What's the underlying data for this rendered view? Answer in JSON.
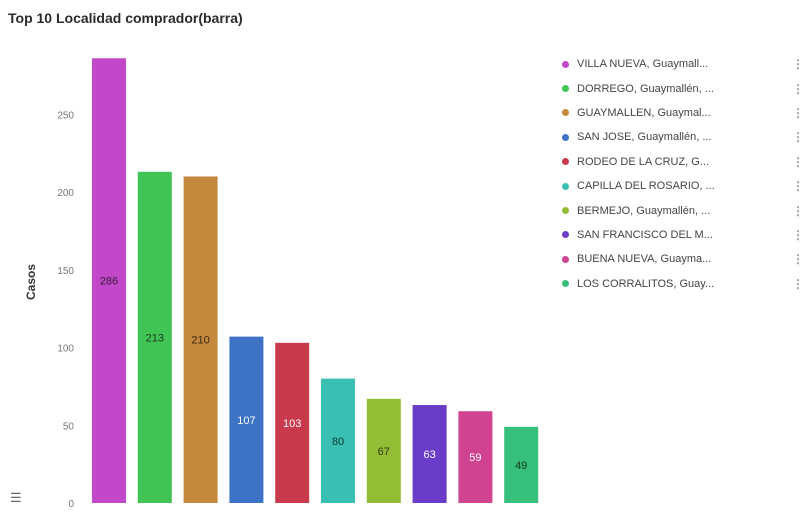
{
  "title": "Top 10 Localidad comprador(barra)",
  "chart_data": {
    "type": "bar",
    "ylabel": "Casos",
    "ylim": [
      0,
      300
    ],
    "yticks": [
      0,
      50,
      100,
      150,
      200,
      250
    ],
    "grid": false,
    "legend_position": "right",
    "categories": [
      "VILLA NUEVA, Guaymall...",
      "DORREGO, Guaymallén, ...",
      "GUAYMALLEN, Guaymal...",
      "SAN JOSE, Guaymallén, ...",
      "RODEO DE LA CRUZ, G...",
      "CAPILLA DEL ROSARIO, ...",
      "BERMEJO, Guaymallén, ...",
      "SAN FRANCISCO DEL M...",
      "BUENA NUEVA, Guayma...",
      "LOS CORRALITOS, Guay..."
    ],
    "values": [
      286,
      213,
      210,
      107,
      103,
      80,
      67,
      63,
      59,
      49
    ],
    "colors": [
      "#c148c8",
      "#3fc455",
      "#c5893d",
      "#3e72c4",
      "#c83a4c",
      "#39c0b2",
      "#92bd35",
      "#6a3dc8",
      "#cf4390",
      "#37bf7c"
    ],
    "label_colors": [
      "#3a1a3c",
      "#1c3a1f",
      "#3a2a12",
      "#ffffff",
      "#ffffff",
      "#103a35",
      "#2b3a10",
      "#ffffff",
      "#ffffff",
      "#103a22"
    ]
  },
  "icons": {
    "legend_menu": "vertical-dots-icon",
    "list_view": "list-icon"
  },
  "list_icon_glyph": "☰",
  "legend_menu_glyph": "⋮"
}
